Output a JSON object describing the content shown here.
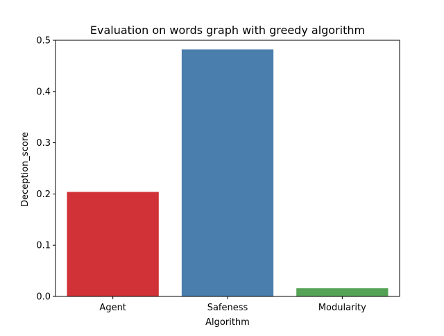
{
  "chart_data": {
    "type": "bar",
    "title": "Evaluation on words graph with greedy algorithm",
    "xlabel": "Algorithm",
    "ylabel": "Deception_score",
    "categories": [
      "Agent",
      "Safeness",
      "Modularity"
    ],
    "values": [
      0.204,
      0.482,
      0.016
    ],
    "colors": [
      "#d03237",
      "#4a7eac",
      "#55a356"
    ],
    "ylim": [
      0,
      0.5
    ],
    "yticks": [
      0.0,
      0.1,
      0.2,
      0.3,
      0.4,
      0.5
    ],
    "ytick_labels": [
      "0.0",
      "0.1",
      "0.2",
      "0.3",
      "0.4",
      "0.5"
    ],
    "grid": false,
    "legend": "none"
  }
}
